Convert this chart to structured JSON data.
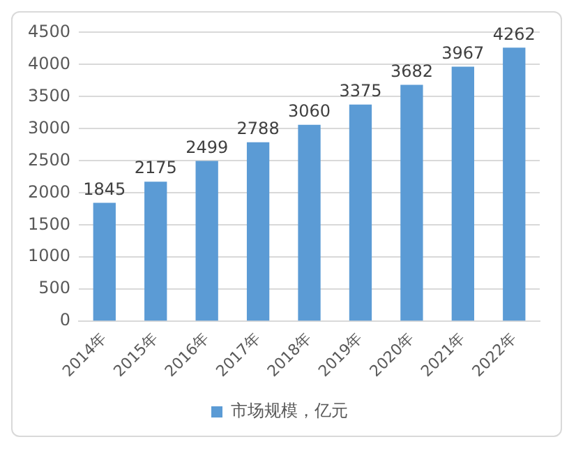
{
  "chart_data": {
    "type": "bar",
    "categories": [
      "2014年",
      "2015年",
      "2016年",
      "2017年",
      "2018年",
      "2019年",
      "2020年",
      "2021年",
      "2022年"
    ],
    "series": [
      {
        "name": "市场规模，亿元",
        "color": "#5b9bd5",
        "values": [
          1845,
          2175,
          2499,
          2788,
          3060,
          3375,
          3682,
          3967,
          4262
        ]
      }
    ],
    "ylim": [
      0,
      4500
    ],
    "yticks": [
      0,
      500,
      1000,
      1500,
      2000,
      2500,
      3000,
      3500,
      4000,
      4500
    ],
    "grid": "y",
    "legend": "bottom",
    "data_labels": true
  }
}
